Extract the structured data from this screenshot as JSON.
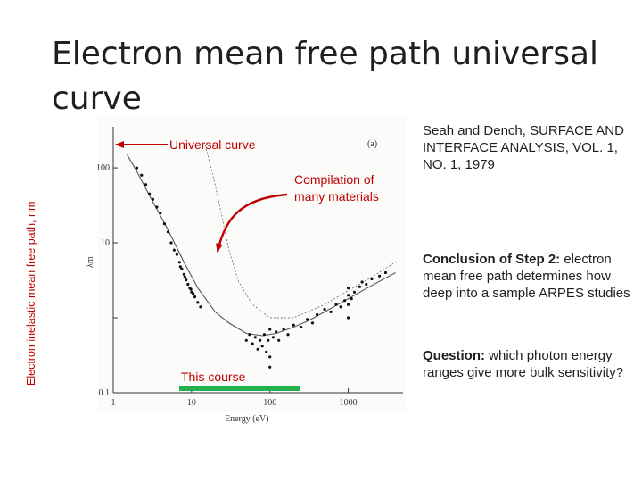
{
  "slide": {
    "title": "Electron mean free path universal curve",
    "side_label": "Electron inelastic mean free path, nm",
    "citation": "Seah and Dench, SURFACE AND INTERFACE ANALYSIS, VOL. 1, NO. 1, 1979",
    "conclusion_heading": "Conclusion of Step 2:",
    "conclusion_body": "electron mean free path determines how deep into a sample ARPES studies",
    "question_heading": "Question:",
    "question_body": "which photon energy ranges give more bulk sensitivity?",
    "annotations": {
      "universal_curve": "Universal curve",
      "compilation_line1": "Compilation of",
      "compilation_line2": "many materials",
      "this_course": "This course"
    },
    "colors": {
      "annotation": "#c00000",
      "course_bar": "#22b14c",
      "scan_ink": "#333333"
    }
  },
  "chart_data": {
    "type": "scatter",
    "panel_label": "(a)",
    "xlabel": "Energy (eV)",
    "ylabel": "λm",
    "x_scale": "log",
    "y_scale": "log",
    "xlim": [
      1,
      5000
    ],
    "ylim": [
      0.1,
      300
    ],
    "x_ticks": [
      {
        "v": 1,
        "label": "1"
      },
      {
        "v": 10,
        "label": "10"
      },
      {
        "v": 100,
        "label": "100"
      },
      {
        "v": 1000,
        "label": "1000"
      }
    ],
    "y_ticks": [
      {
        "v": 0.1,
        "label": "0.1"
      },
      {
        "v": 1,
        "label": ""
      },
      {
        "v": 10,
        "label": "10"
      },
      {
        "v": 100,
        "label": "100"
      }
    ],
    "universal_curve": {
      "x": [
        1.5,
        2,
        3,
        5,
        8,
        12,
        20,
        30,
        50,
        80,
        120,
        200,
        300,
        500,
        1000,
        2000,
        4000
      ],
      "y": [
        150,
        90,
        40,
        15,
        5.5,
        2.5,
        1.2,
        0.85,
        0.62,
        0.58,
        0.62,
        0.75,
        0.9,
        1.2,
        1.8,
        2.7,
        4
      ]
    },
    "dashed_curve": {
      "x": [
        15,
        20,
        25,
        30,
        40,
        60,
        100,
        200,
        500,
        1000,
        2000,
        4000
      ],
      "y": [
        200,
        60,
        20,
        8,
        3,
        1.5,
        1.0,
        1.0,
        1.5,
        2.3,
        3.5,
        5.5
      ]
    },
    "points": [
      {
        "x": 2,
        "y": 100
      },
      {
        "x": 2.3,
        "y": 80
      },
      {
        "x": 2.6,
        "y": 60
      },
      {
        "x": 2.9,
        "y": 45
      },
      {
        "x": 3.2,
        "y": 38
      },
      {
        "x": 3.6,
        "y": 30
      },
      {
        "x": 4,
        "y": 25
      },
      {
        "x": 4.5,
        "y": 18
      },
      {
        "x": 5,
        "y": 14
      },
      {
        "x": 5.5,
        "y": 10
      },
      {
        "x": 6,
        "y": 8
      },
      {
        "x": 6.5,
        "y": 7
      },
      {
        "x": 7,
        "y": 5.5
      },
      {
        "x": 7.5,
        "y": 4.5
      },
      {
        "x": 8,
        "y": 3.8
      },
      {
        "x": 8.5,
        "y": 3.2
      },
      {
        "x": 9,
        "y": 2.8
      },
      {
        "x": 9.5,
        "y": 2.5
      },
      {
        "x": 10,
        "y": 2.2
      },
      {
        "x": 11,
        "y": 1.9
      },
      {
        "x": 12,
        "y": 1.6
      },
      {
        "x": 13,
        "y": 1.4
      },
      {
        "x": 7.2,
        "y": 4.8
      },
      {
        "x": 8.2,
        "y": 3.5
      },
      {
        "x": 9.8,
        "y": 2.4
      },
      {
        "x": 10.5,
        "y": 2.1
      },
      {
        "x": 50,
        "y": 0.5
      },
      {
        "x": 55,
        "y": 0.6
      },
      {
        "x": 60,
        "y": 0.45
      },
      {
        "x": 65,
        "y": 0.55
      },
      {
        "x": 70,
        "y": 0.38
      },
      {
        "x": 75,
        "y": 0.5
      },
      {
        "x": 80,
        "y": 0.42
      },
      {
        "x": 85,
        "y": 0.6
      },
      {
        "x": 90,
        "y": 0.35
      },
      {
        "x": 95,
        "y": 0.5
      },
      {
        "x": 100,
        "y": 0.7
      },
      {
        "x": 100,
        "y": 0.3
      },
      {
        "x": 100,
        "y": 0.22
      },
      {
        "x": 110,
        "y": 0.55
      },
      {
        "x": 120,
        "y": 0.65
      },
      {
        "x": 130,
        "y": 0.5
      },
      {
        "x": 150,
        "y": 0.7
      },
      {
        "x": 170,
        "y": 0.6
      },
      {
        "x": 200,
        "y": 0.8
      },
      {
        "x": 250,
        "y": 0.75
      },
      {
        "x": 300,
        "y": 0.95
      },
      {
        "x": 350,
        "y": 0.85
      },
      {
        "x": 400,
        "y": 1.1
      },
      {
        "x": 500,
        "y": 1.3
      },
      {
        "x": 600,
        "y": 1.2
      },
      {
        "x": 700,
        "y": 1.5
      },
      {
        "x": 800,
        "y": 1.4
      },
      {
        "x": 900,
        "y": 1.7
      },
      {
        "x": 1000,
        "y": 1.0
      },
      {
        "x": 1000,
        "y": 1.5
      },
      {
        "x": 1000,
        "y": 2.0
      },
      {
        "x": 1000,
        "y": 2.5
      },
      {
        "x": 1100,
        "y": 1.8
      },
      {
        "x": 1200,
        "y": 2.2
      },
      {
        "x": 1400,
        "y": 2.6
      },
      {
        "x": 1500,
        "y": 3.0
      },
      {
        "x": 1700,
        "y": 2.8
      },
      {
        "x": 2000,
        "y": 3.3
      },
      {
        "x": 2500,
        "y": 3.6
      },
      {
        "x": 3000,
        "y": 4.0
      }
    ]
  }
}
